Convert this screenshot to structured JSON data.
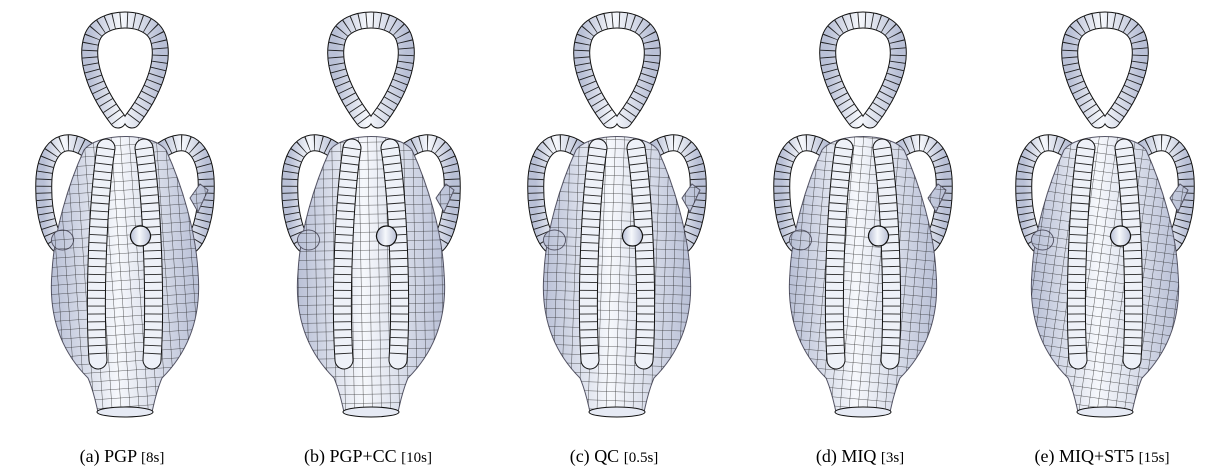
{
  "figure": {
    "panels": [
      {
        "letter": "(a)",
        "method": "PGP",
        "time": "[8s]"
      },
      {
        "letter": "(b)",
        "method": "PGP+CC",
        "time": "[10s]"
      },
      {
        "letter": "(c)",
        "method": "QC",
        "time": "[0.5s]"
      },
      {
        "letter": "(d)",
        "method": "MIQ",
        "time": "[3s]"
      },
      {
        "letter": "(e)",
        "method": "MIQ+ST5",
        "time": "[15s]"
      }
    ],
    "colors": {
      "surface": "#e6eaf4",
      "grid": "#111111",
      "shade": "#b9c0d6"
    }
  }
}
